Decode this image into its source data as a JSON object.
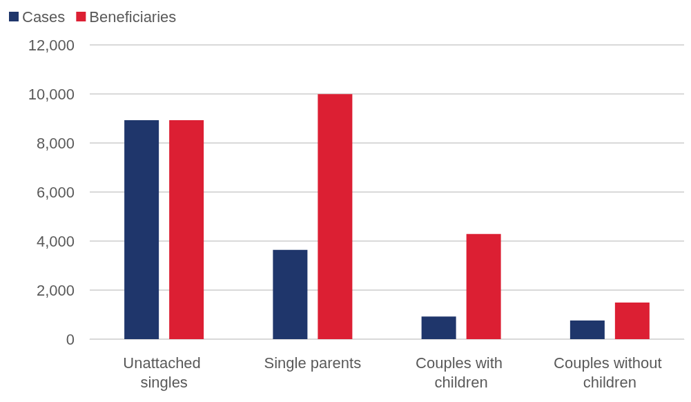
{
  "chart_data": {
    "type": "bar",
    "categories": [
      "Unattached singles",
      "Single parents",
      "Couples with children",
      "Couples without children"
    ],
    "series": [
      {
        "name": "Cases",
        "color": "#1f366b",
        "values": [
          8930,
          3640,
          920,
          760
        ]
      },
      {
        "name": "Beneficiaries",
        "color": "#dc1f33",
        "values": [
          8930,
          9990,
          4290,
          1490
        ]
      }
    ],
    "ylim": [
      0,
      12000
    ],
    "yticks": [
      0,
      {
        "value": 2000,
        "label": "2,000"
      },
      {
        "value": 4000,
        "label": "4,000"
      },
      {
        "value": 6000,
        "label": "6,000"
      },
      {
        "value": 8000,
        "label": "8,000"
      },
      {
        "value": 10000,
        "label": "10,000"
      },
      {
        "value": 12000,
        "label": "12,000"
      }
    ],
    "grid": "y",
    "legend": "top left"
  }
}
